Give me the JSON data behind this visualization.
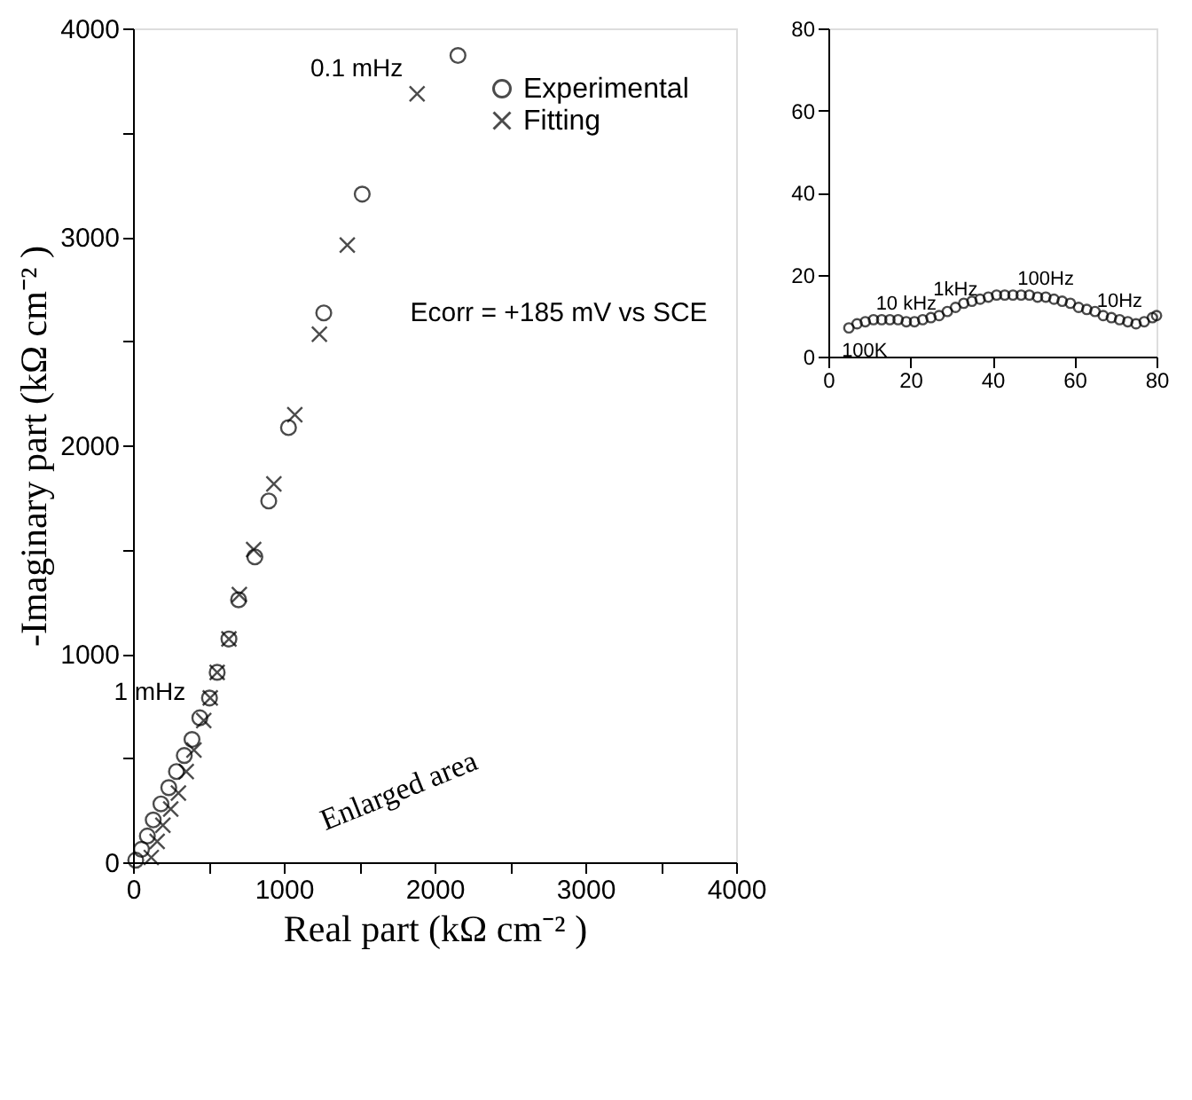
{
  "chart_data": [
    {
      "type": "scatter",
      "xlabel": "Real part (kΩ cm⁻² )",
      "ylabel": "-Imaginary part (kΩ cm⁻² )",
      "xlim": [
        0,
        4000
      ],
      "ylim": [
        0,
        4000
      ],
      "xticks": [
        0,
        {
          "value": 500,
          "label": null
        },
        1000,
        {
          "value": 1500,
          "label": null
        },
        2000,
        {
          "value": 2500,
          "label": null
        },
        3000,
        {
          "value": 3500,
          "label": null
        },
        4000
      ],
      "yticks": [
        0,
        {
          "value": 500,
          "label": null
        },
        1000,
        {
          "value": 1500,
          "label": null
        },
        2000,
        {
          "value": 2500,
          "label": null
        },
        3000,
        {
          "value": 3500,
          "label": null
        },
        4000
      ],
      "grid": false,
      "legend": "top right",
      "series": [
        {
          "name": "Experimental",
          "color": "#000000",
          "marker": "circle",
          "x": [
            18,
            56,
            95,
            134,
            185,
            237,
            288,
            340,
            391,
            443,
            507,
            558,
            636,
            700,
            808,
            900,
            1031,
            1265,
            1520,
            2155
          ],
          "values": [
            10,
            62,
            126,
            203,
            280,
            358,
            435,
            512,
            589,
            693,
            788,
            911,
            1071,
            1259,
            1465,
            1733,
            2085,
            2635,
            3205,
            3870
          ]
        },
        {
          "name": "Fitting",
          "color": "#000000",
          "marker": "cross",
          "x": [
            121,
            160,
            198,
            250,
            301,
            353,
            404,
            469,
            512,
            558,
            636,
            705,
            800,
            934,
            1073,
            1236,
            1421,
            1884
          ],
          "values": [
            23,
            100,
            178,
            255,
            332,
            435,
            538,
            680,
            788,
            911,
            1071,
            1284,
            1500,
            1815,
            2147,
            2533,
            2961,
            3686
          ]
        }
      ],
      "annotations": [
        {
          "text": "0.1 mHz",
          "x": 1884,
          "y": 3686
        },
        {
          "text": "1 mHz",
          "x": 443,
          "y": 693
        },
        "Enlarged area",
        "Ecorr = +185 mV vs SCE"
      ]
    },
    {
      "type": "scatter",
      "xlim": [
        0,
        80
      ],
      "ylim": [
        0,
        80
      ],
      "xticks": [
        0,
        20,
        40,
        60,
        80
      ],
      "yticks": [
        0,
        20,
        40,
        60,
        80
      ],
      "grid": false,
      "series": [
        {
          "color": "#000000",
          "marker": "circle",
          "x": [
            5,
            7,
            9,
            11,
            13,
            15,
            17,
            19,
            21,
            23,
            25,
            27,
            29,
            31,
            33,
            35,
            37,
            39,
            41,
            43,
            45,
            47,
            49,
            51,
            53,
            55,
            57,
            59,
            61,
            63,
            65,
            67,
            69,
            71,
            73,
            75,
            77,
            79,
            80
          ],
          "values": [
            7,
            8,
            8.5,
            9,
            9,
            9,
            9,
            8.5,
            8.5,
            9,
            9.5,
            10,
            11,
            12,
            13,
            13.5,
            14,
            14.5,
            15,
            15,
            15,
            15,
            15,
            14.5,
            14.5,
            14,
            13.5,
            13,
            12,
            11.5,
            11,
            10,
            9.5,
            9,
            8.5,
            8,
            8.5,
            9.5,
            10
          ]
        }
      ],
      "annotations": [
        {
          "text": "100K",
          "x": 5,
          "y": 7
        },
        {
          "text": "10 kHz",
          "x": 19,
          "y": 8.5
        },
        {
          "text": "1kHz",
          "x": 31,
          "y": 12
        },
        {
          "text": "100Hz",
          "x": 53,
          "y": 14.5
        },
        {
          "text": "10Hz",
          "x": 71,
          "y": 9
        }
      ]
    }
  ]
}
